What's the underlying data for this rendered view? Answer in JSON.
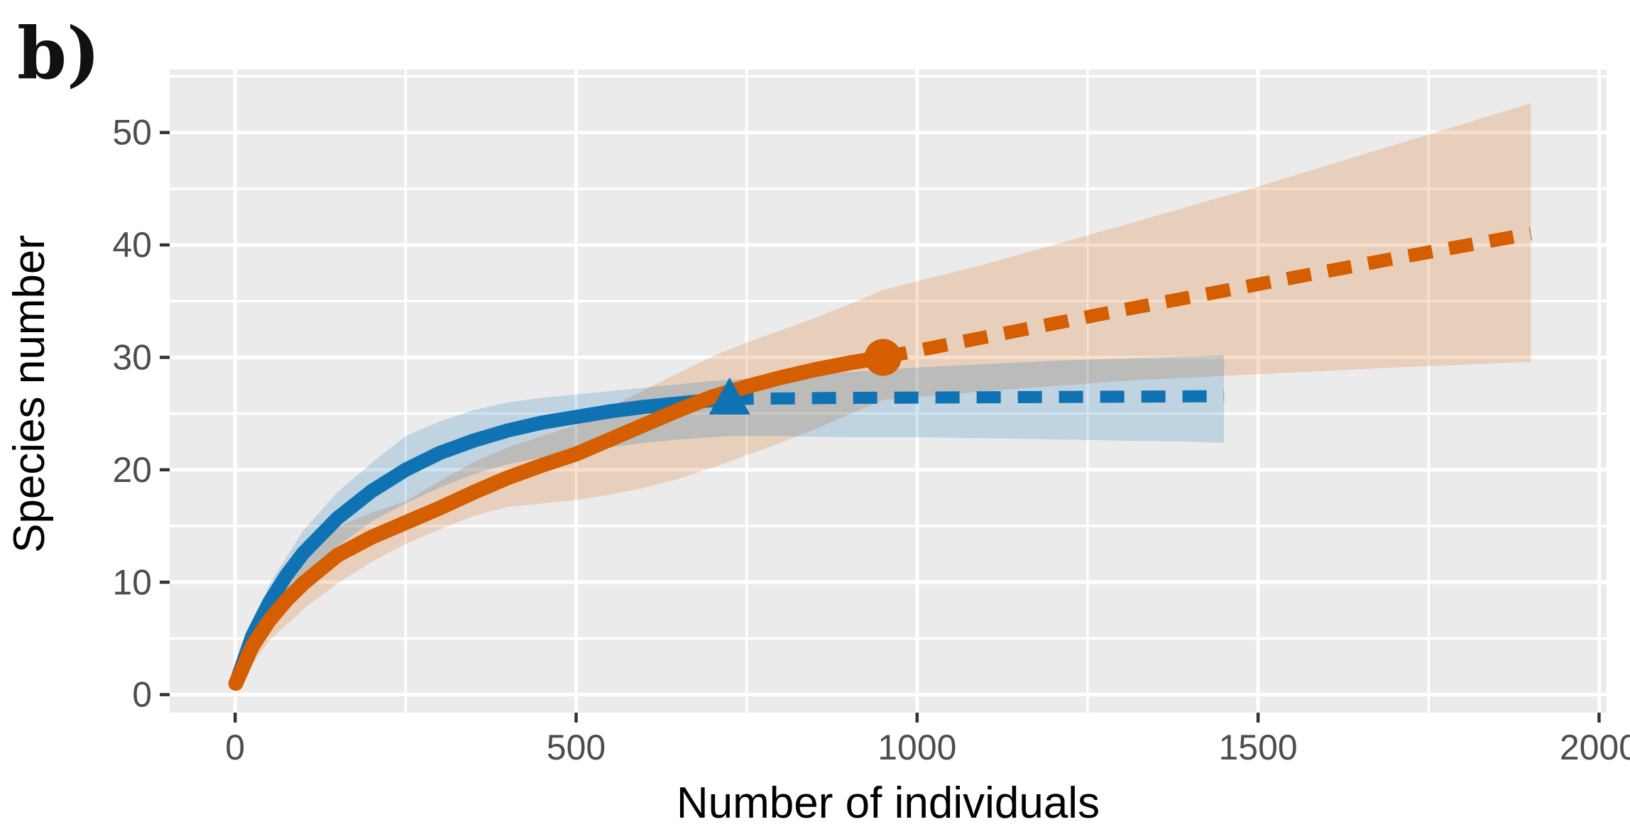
{
  "figure": {
    "panel_label": "b)"
  },
  "chart_data": {
    "type": "line",
    "title": "",
    "xlabel": "Number of individuals",
    "ylabel": "Species number",
    "xlim": [
      -96,
      2011
    ],
    "ylim": [
      -1.6,
      55.6
    ],
    "x_ticks": [
      0,
      500,
      1000,
      1500,
      2000
    ],
    "x_tick_labels": [
      "0",
      "500",
      "1000",
      "1500",
      "2000"
    ],
    "x_minor_ticks": [
      250,
      750,
      1250,
      1750
    ],
    "y_ticks": [
      0,
      10,
      20,
      30,
      40,
      50
    ],
    "y_tick_labels": [
      "0",
      "10",
      "20",
      "30",
      "40",
      "50"
    ],
    "y_minor_ticks": [
      5,
      15,
      25,
      35,
      45,
      55
    ],
    "grid": true,
    "legend_position": "none",
    "panel_background": "#ebebeb",
    "gridline_color": "#ffffff",
    "tick_color": "#333333",
    "tick_label_color": "#4d4d4d",
    "axis_title_color": "#000000",
    "series": [
      {
        "name": "rarefaction-blue",
        "color": "#0f72b2",
        "style": "solid",
        "width": 20,
        "points": [
          [
            1,
            1
          ],
          [
            25,
            5.2
          ],
          [
            50,
            8.2
          ],
          [
            75,
            10.6
          ],
          [
            100,
            12.6
          ],
          [
            150,
            15.7
          ],
          [
            200,
            18.1
          ],
          [
            250,
            20
          ],
          [
            300,
            21.5
          ],
          [
            350,
            22.6
          ],
          [
            400,
            23.5
          ],
          [
            450,
            24.2
          ],
          [
            500,
            24.7
          ],
          [
            550,
            25.2
          ],
          [
            600,
            25.6
          ],
          [
            650,
            25.9
          ],
          [
            700,
            26.2
          ],
          [
            725,
            26.3
          ]
        ]
      },
      {
        "name": "extrapolation-blue",
        "color": "#0f72b2",
        "style": "dashed",
        "width": 17,
        "points": [
          [
            725,
            26.3
          ],
          [
            900,
            26.4
          ],
          [
            1100,
            26.45
          ],
          [
            1300,
            26.5
          ],
          [
            1450,
            26.55
          ]
        ]
      },
      {
        "name": "rarefaction-orange",
        "color": "#d55e00",
        "style": "solid",
        "width": 21,
        "points": [
          [
            1,
            1
          ],
          [
            25,
            4.3
          ],
          [
            50,
            6.6
          ],
          [
            75,
            8.4
          ],
          [
            100,
            9.9
          ],
          [
            150,
            12.4
          ],
          [
            200,
            14
          ],
          [
            250,
            15.3
          ],
          [
            300,
            16.6
          ],
          [
            350,
            18
          ],
          [
            400,
            19.3
          ],
          [
            450,
            20.4
          ],
          [
            500,
            21.4
          ],
          [
            550,
            22.7
          ],
          [
            600,
            24
          ],
          [
            650,
            25.3
          ],
          [
            700,
            26.5
          ],
          [
            750,
            27.4
          ],
          [
            800,
            28.2
          ],
          [
            850,
            28.9
          ],
          [
            900,
            29.5
          ],
          [
            950,
            30
          ]
        ]
      },
      {
        "name": "extrapolation-orange",
        "color": "#d55e00",
        "style": "dashed",
        "width": 19,
        "points": [
          [
            950,
            30
          ],
          [
            1100,
            31.8
          ],
          [
            1300,
            34.2
          ],
          [
            1500,
            36.5
          ],
          [
            1700,
            38.8
          ],
          [
            1900,
            41
          ]
        ]
      }
    ],
    "ribbons": [
      {
        "name": "ci-orange",
        "color": "#d55e00",
        "opacity": 0.2,
        "points": [
          [
            1,
            0.7,
            1.3
          ],
          [
            50,
            4.8,
            8.4
          ],
          [
            100,
            7.6,
            12.2
          ],
          [
            150,
            9.9,
            14.9
          ],
          [
            200,
            11.8,
            16.2
          ],
          [
            250,
            13.4,
            17.2
          ],
          [
            300,
            14.7,
            19
          ],
          [
            350,
            15.9,
            20.7
          ],
          [
            400,
            16.7,
            22
          ],
          [
            450,
            17,
            23
          ],
          [
            500,
            17.3,
            24
          ],
          [
            550,
            17.8,
            25.6
          ],
          [
            600,
            18.4,
            27.1
          ],
          [
            650,
            19.2,
            28.6
          ],
          [
            700,
            20.2,
            30.1
          ],
          [
            750,
            21.3,
            31.3
          ],
          [
            800,
            22.4,
            32.4
          ],
          [
            850,
            23.6,
            33.5
          ],
          [
            900,
            24.9,
            34.7
          ],
          [
            950,
            26.2,
            36
          ],
          [
            1100,
            27,
            38.3
          ],
          [
            1300,
            27.9,
            41.7
          ],
          [
            1500,
            28.5,
            45.2
          ],
          [
            1700,
            29.1,
            48.9
          ],
          [
            1900,
            29.6,
            52.6
          ]
        ]
      },
      {
        "name": "ci-blue",
        "color": "#0f72b2",
        "opacity": 0.2,
        "points": [
          [
            1,
            0.8,
            1.4
          ],
          [
            50,
            6.4,
            9.8
          ],
          [
            100,
            10.4,
            14.6
          ],
          [
            150,
            13.2,
            18
          ],
          [
            200,
            15.4,
            20.6
          ],
          [
            250,
            17,
            23
          ],
          [
            300,
            18.4,
            24.3
          ],
          [
            350,
            19.6,
            25.3
          ],
          [
            400,
            20.5,
            26
          ],
          [
            450,
            21.1,
            26.4
          ],
          [
            500,
            21.6,
            26.7
          ],
          [
            550,
            22,
            27
          ],
          [
            600,
            22.4,
            27.3
          ],
          [
            650,
            22.7,
            27.6
          ],
          [
            700,
            22.9,
            27.9
          ],
          [
            725,
            23,
            28
          ],
          [
            800,
            23,
            28.3
          ],
          [
            900,
            22.9,
            28.7
          ],
          [
            1000,
            22.9,
            29.1
          ],
          [
            1100,
            22.8,
            29.4
          ],
          [
            1200,
            22.7,
            29.7
          ],
          [
            1300,
            22.6,
            29.9
          ],
          [
            1400,
            22.5,
            30.1
          ],
          [
            1450,
            22.4,
            30.2
          ]
        ]
      }
    ],
    "markers": [
      {
        "name": "endpoint-blue",
        "shape": "triangle",
        "color": "#0f72b2",
        "x": 725,
        "y": 26.3,
        "size": 58
      },
      {
        "name": "endpoint-orange",
        "shape": "circle",
        "color": "#d55e00",
        "x": 950,
        "y": 30,
        "size": 52
      }
    ]
  }
}
